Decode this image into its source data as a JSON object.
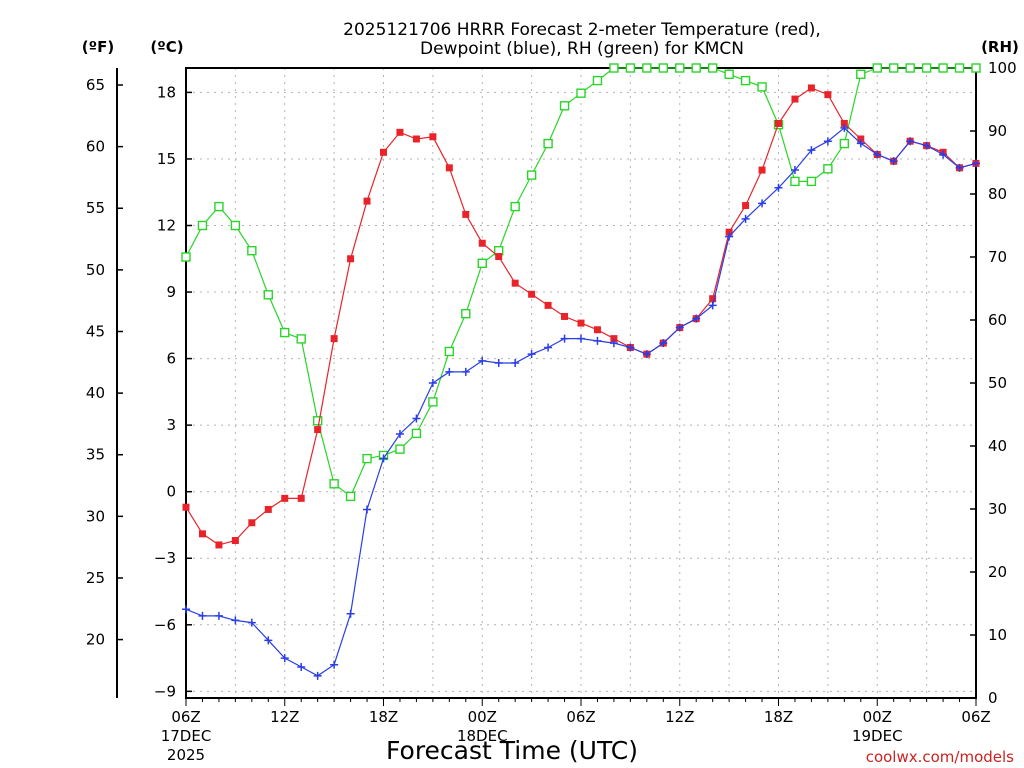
{
  "chart_data": {
    "type": "line",
    "title_line1": "2025121706 HRRR Forecast 2-meter Temperature (red),",
    "title_line2": "Dewpoint (blue), RH (green) for KMCN",
    "xlabel": "Forecast Time (UTC)",
    "credit": "coolwx.com/models",
    "left_axis_unit": "(ºF)",
    "celsius_axis_unit": "(ºC)",
    "right_axis_unit": "(RH)",
    "ylim_c": [
      -9.3,
      19.1
    ],
    "ylim_rh": [
      0,
      100
    ],
    "xlim_hours": [
      0,
      48
    ],
    "x_ticks": [
      {
        "hour": 0,
        "label": "06Z",
        "date": "17DEC",
        "year": "2025"
      },
      {
        "hour": 6,
        "label": "12Z"
      },
      {
        "hour": 12,
        "label": "18Z"
      },
      {
        "hour": 18,
        "label": "00Z",
        "date": "18DEC"
      },
      {
        "hour": 24,
        "label": "06Z"
      },
      {
        "hour": 30,
        "label": "12Z"
      },
      {
        "hour": 36,
        "label": "18Z"
      },
      {
        "hour": 42,
        "label": "00Z",
        "date": "19DEC"
      },
      {
        "hour": 48,
        "label": "06Z"
      }
    ],
    "celsius_ticks": [
      18,
      15,
      12,
      9,
      6,
      3,
      0,
      -3,
      -6,
      -9
    ],
    "celsius_tick_labels": [
      "18",
      "15",
      "12",
      "9",
      "6",
      "3",
      "0",
      "−3",
      "−6",
      "−9"
    ],
    "fahrenheit_ticks": [
      65,
      60,
      55,
      50,
      45,
      40,
      35,
      30,
      25,
      20
    ],
    "rh_ticks": [
      100,
      90,
      80,
      70,
      60,
      50,
      40,
      30,
      20,
      10,
      0
    ],
    "series": [
      {
        "name": "Temperature",
        "unit": "C",
        "color": "#e8242a",
        "marker": "filled-square",
        "values": [
          -0.7,
          -1.9,
          -2.4,
          -2.2,
          -1.4,
          -0.8,
          -0.3,
          -0.3,
          2.8,
          6.9,
          10.5,
          13.1,
          15.3,
          16.2,
          15.9,
          16.0,
          14.6,
          12.5,
          11.2,
          10.6,
          9.4,
          8.9,
          8.4,
          7.9,
          7.6,
          7.3,
          6.9,
          6.5,
          6.2,
          6.7,
          7.4,
          7.8,
          8.7,
          11.7,
          12.9,
          14.5,
          16.6,
          17.7,
          18.2,
          17.9,
          16.6,
          15.9,
          15.2,
          14.9,
          15.8,
          15.6,
          15.3,
          14.6,
          14.8
        ]
      },
      {
        "name": "Dewpoint",
        "unit": "C",
        "color": "#2a3ee6",
        "marker": "plus",
        "values": [
          -5.3,
          -5.6,
          -5.6,
          -5.8,
          -5.9,
          -6.7,
          -7.5,
          -7.9,
          -8.3,
          -7.8,
          -5.5,
          -0.8,
          1.5,
          2.6,
          3.3,
          4.9,
          5.4,
          5.4,
          5.9,
          5.8,
          5.8,
          6.2,
          6.5,
          6.9,
          6.9,
          6.8,
          6.7,
          6.5,
          6.2,
          6.7,
          7.4,
          7.8,
          8.4,
          11.5,
          12.3,
          13.0,
          13.7,
          14.5,
          15.4,
          15.8,
          16.4,
          15.7,
          15.2,
          14.9,
          15.8,
          15.6,
          15.2,
          14.6,
          14.8
        ]
      },
      {
        "name": "RH",
        "unit": "%",
        "color": "#2ad42a",
        "marker": "open-square",
        "values": [
          70,
          75,
          78,
          75,
          71,
          64,
          58,
          57,
          44,
          34,
          32,
          38,
          38.5,
          39.5,
          42,
          47,
          55,
          61,
          69,
          71,
          78,
          83,
          88,
          94,
          96,
          98,
          100,
          100,
          100,
          100,
          100,
          100,
          100,
          99,
          98,
          97,
          91,
          82,
          82,
          84,
          88,
          99,
          100,
          100,
          100,
          100,
          100,
          100,
          100
        ]
      }
    ]
  }
}
